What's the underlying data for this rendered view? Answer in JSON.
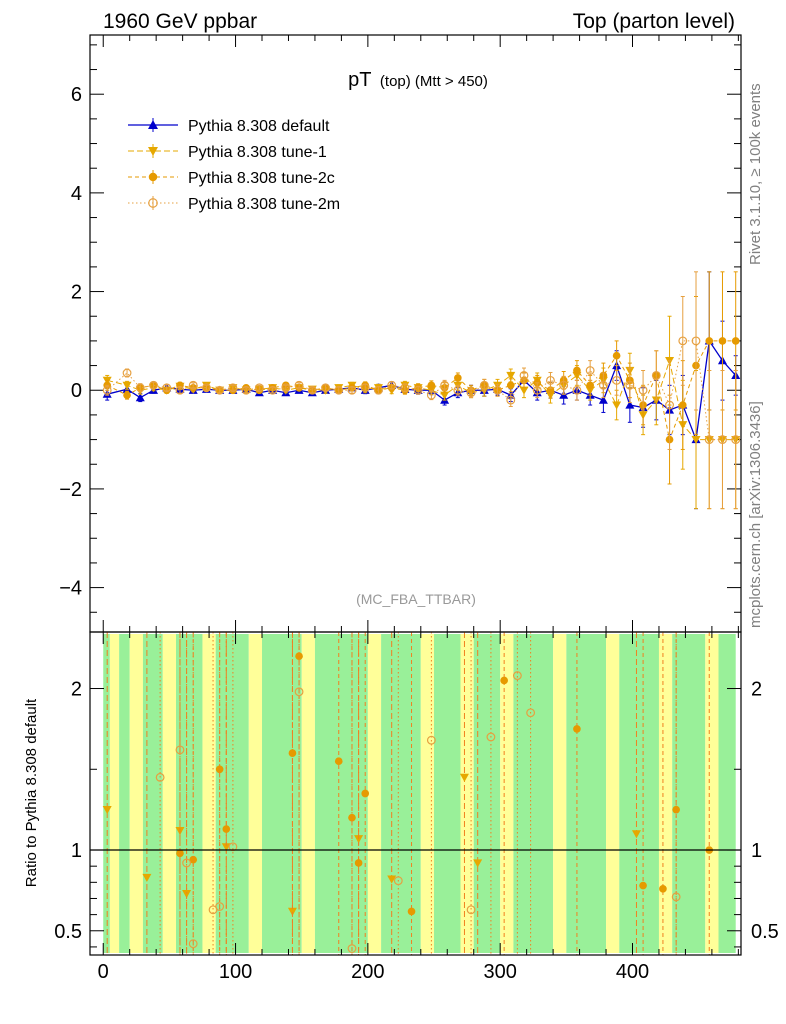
{
  "header": {
    "left": "1960 GeV ppbar",
    "right": "Top (parton level)"
  },
  "side_labels": {
    "top": "Rivet 3.1.10, ≥ 100k events",
    "bottom": "mcplots.cern.ch [arXiv:1306.3436]"
  },
  "colors": {
    "default": "#0000cc",
    "tune1": "#e6a800",
    "tune2c": "#e69a00",
    "tune2m": "#e6a040",
    "ratio_band_green": "#99f099",
    "ratio_band_yellow": "#ffff99",
    "ratio_line": "#f08020"
  },
  "chart_data": [
    {
      "type": "line",
      "title": "pT (top) (Mtt > 450)",
      "title_main": "pT",
      "title_sub": "(top) (Mtt > 450)",
      "watermark": "(MC_FBA_TTBAR)",
      "xlim": [
        -10,
        482
      ],
      "ylim": [
        -4.9,
        7.2
      ],
      "yticks": [
        -4,
        -2,
        0,
        2,
        4,
        6
      ],
      "ytick_labels": [
        "−4",
        "−2",
        "0",
        "2",
        "4",
        "6"
      ],
      "legend_position": "top-left",
      "series": [
        {
          "name": "Pythia 8.308 default",
          "marker": "triangle-up",
          "x": [
            3,
            18,
            28,
            38,
            48,
            58,
            68,
            78,
            88,
            98,
            108,
            118,
            128,
            138,
            148,
            158,
            168,
            178,
            188,
            198,
            208,
            218,
            228,
            238,
            248,
            258,
            268,
            278,
            288,
            298,
            308,
            318,
            328,
            338,
            348,
            358,
            368,
            378,
            388,
            398,
            408,
            418,
            428,
            438,
            448,
            458,
            468,
            478
          ],
          "y": [
            -0.08,
            0.02,
            -0.15,
            0.0,
            0.05,
            0.02,
            0.0,
            0.02,
            0.0,
            0.0,
            0.02,
            -0.05,
            0.0,
            -0.05,
            0.0,
            -0.05,
            0.0,
            0.02,
            0.05,
            0.0,
            0.05,
            0.1,
            0.02,
            0.0,
            0.0,
            -0.2,
            -0.05,
            0.0,
            0.0,
            0.02,
            -0.1,
            0.2,
            -0.05,
            0.0,
            -0.1,
            0.0,
            -0.1,
            -0.2,
            0.5,
            -0.3,
            -0.35,
            -0.2,
            -0.4,
            -0.3,
            -1.0,
            1.0,
            0.6,
            0.3
          ],
          "err": [
            0.12,
            0.08,
            0.08,
            0.06,
            0.06,
            0.06,
            0.05,
            0.05,
            0.05,
            0.05,
            0.05,
            0.05,
            0.05,
            0.05,
            0.05,
            0.05,
            0.06,
            0.06,
            0.06,
            0.07,
            0.07,
            0.07,
            0.08,
            0.08,
            0.09,
            0.1,
            0.1,
            0.1,
            0.12,
            0.12,
            0.13,
            0.15,
            0.15,
            0.16,
            0.18,
            0.2,
            0.2,
            0.25,
            0.3,
            0.35,
            0.4,
            0.4,
            0.5,
            0.6,
            1.4,
            1.4,
            0.8,
            0.4
          ]
        },
        {
          "name": "Pythia 8.308 tune-1",
          "marker": "triangle-down",
          "x": [
            3,
            18,
            28,
            38,
            48,
            58,
            68,
            78,
            88,
            98,
            108,
            118,
            128,
            138,
            148,
            158,
            168,
            178,
            188,
            198,
            208,
            218,
            228,
            238,
            248,
            258,
            268,
            278,
            288,
            298,
            308,
            318,
            328,
            338,
            348,
            358,
            368,
            378,
            388,
            398,
            408,
            418,
            428,
            438,
            448,
            458,
            468,
            478
          ],
          "y": [
            0.2,
            0.1,
            0.0,
            0.05,
            0.0,
            0.08,
            0.02,
            0.1,
            0.0,
            0.05,
            0.0,
            0.02,
            0.05,
            0.0,
            0.05,
            0.02,
            0.0,
            0.05,
            0.1,
            0.02,
            0.05,
            0.0,
            0.1,
            0.05,
            0.0,
            -0.1,
            0.1,
            -0.05,
            0.0,
            0.1,
            0.3,
            0.0,
            0.2,
            -0.1,
            0.1,
            0.3,
            0.0,
            0.2,
            -0.3,
            0.4,
            -0.5,
            -0.2,
            0.6,
            -0.7,
            -1.0,
            -1.0,
            -1.0,
            -1.0
          ],
          "err": [
            0.1,
            0.08,
            0.08,
            0.06,
            0.06,
            0.06,
            0.05,
            0.05,
            0.05,
            0.05,
            0.05,
            0.05,
            0.05,
            0.05,
            0.05,
            0.05,
            0.06,
            0.06,
            0.06,
            0.07,
            0.07,
            0.07,
            0.08,
            0.08,
            0.09,
            0.1,
            0.1,
            0.1,
            0.12,
            0.12,
            0.13,
            0.15,
            0.15,
            0.16,
            0.18,
            0.2,
            0.2,
            0.25,
            0.3,
            0.35,
            0.4,
            0.5,
            0.9,
            0.9,
            1.4,
            1.4,
            1.4,
            1.4
          ]
        },
        {
          "name": "Pythia 8.308 tune-2c",
          "marker": "circle",
          "x": [
            3,
            18,
            28,
            38,
            48,
            58,
            68,
            78,
            88,
            98,
            108,
            118,
            128,
            138,
            148,
            158,
            168,
            178,
            188,
            198,
            208,
            218,
            228,
            238,
            248,
            258,
            268,
            278,
            288,
            298,
            308,
            318,
            328,
            338,
            348,
            358,
            368,
            378,
            388,
            398,
            408,
            418,
            428,
            438,
            448,
            458,
            468,
            478
          ],
          "y": [
            0.1,
            -0.1,
            0.05,
            0.1,
            0.0,
            0.1,
            0.05,
            0.05,
            0.0,
            0.0,
            0.05,
            0.0,
            0.05,
            0.1,
            0.05,
            0.0,
            0.05,
            0.0,
            0.05,
            0.1,
            0.0,
            0.05,
            0.0,
            0.05,
            0.1,
            0.05,
            0.25,
            0.0,
            0.1,
            0.0,
            0.1,
            0.2,
            0.15,
            0.0,
            0.2,
            0.4,
            0.1,
            0.3,
            0.7,
            0.2,
            -0.3,
            0.3,
            -1.0,
            -0.3,
            0.5,
            1.0,
            1.0,
            1.0
          ],
          "err": [
            0.1,
            0.08,
            0.08,
            0.06,
            0.06,
            0.06,
            0.05,
            0.05,
            0.05,
            0.05,
            0.05,
            0.05,
            0.05,
            0.05,
            0.05,
            0.05,
            0.06,
            0.06,
            0.06,
            0.07,
            0.07,
            0.07,
            0.08,
            0.08,
            0.09,
            0.1,
            0.1,
            0.1,
            0.12,
            0.12,
            0.13,
            0.15,
            0.15,
            0.16,
            0.18,
            0.2,
            0.2,
            0.25,
            0.3,
            0.35,
            0.4,
            0.5,
            0.9,
            0.9,
            1.4,
            1.4,
            1.4,
            1.4
          ]
        },
        {
          "name": "Pythia 8.308 tune-2m",
          "marker": "circle-open",
          "x": [
            3,
            18,
            28,
            38,
            48,
            58,
            68,
            78,
            88,
            98,
            108,
            118,
            128,
            138,
            148,
            158,
            168,
            178,
            188,
            198,
            208,
            218,
            228,
            238,
            248,
            258,
            268,
            278,
            288,
            298,
            308,
            318,
            328,
            338,
            348,
            358,
            368,
            378,
            388,
            398,
            408,
            418,
            428,
            438,
            448,
            458,
            468,
            478
          ],
          "y": [
            0.0,
            0.35,
            0.05,
            0.1,
            0.05,
            0.0,
            0.1,
            0.05,
            0.0,
            0.05,
            0.0,
            0.05,
            0.0,
            0.05,
            0.1,
            0.0,
            0.05,
            0.0,
            0.0,
            0.05,
            0.0,
            0.1,
            0.05,
            0.0,
            -0.1,
            0.1,
            0.0,
            -0.05,
            0.1,
            0.0,
            -0.2,
            0.3,
            0.0,
            0.2,
            0.1,
            0.0,
            0.4,
            0.1,
            0.2,
            0.1,
            0.0,
            0.3,
            -0.3,
            1.0,
            1.0,
            -1.0,
            -1.0,
            -1.0
          ],
          "err": [
            0.1,
            0.08,
            0.08,
            0.06,
            0.06,
            0.06,
            0.05,
            0.05,
            0.05,
            0.05,
            0.05,
            0.05,
            0.05,
            0.05,
            0.05,
            0.05,
            0.06,
            0.06,
            0.06,
            0.07,
            0.07,
            0.07,
            0.08,
            0.08,
            0.09,
            0.1,
            0.1,
            0.1,
            0.12,
            0.12,
            0.13,
            0.15,
            0.15,
            0.16,
            0.18,
            0.2,
            0.2,
            0.25,
            0.3,
            0.35,
            0.4,
            0.5,
            0.9,
            0.9,
            1.4,
            1.4,
            1.4,
            1.4
          ]
        }
      ]
    },
    {
      "type": "line",
      "ylabel": "Ratio to Pythia 8.308 default",
      "xlim": [
        -10,
        482
      ],
      "ylim": [
        0.35,
        2.35
      ],
      "yticks": [
        0.5,
        1,
        2
      ],
      "ytick_labels": [
        "0.5",
        "1",
        "2"
      ],
      "xticks": [
        0,
        100,
        200,
        300,
        400
      ],
      "xtick_labels": [
        "0",
        "100",
        "200",
        "300",
        "400"
      ],
      "reference_line": 1,
      "bands": [
        {
          "x0": 0,
          "x1": 5,
          "color": "green"
        },
        {
          "x0": 5,
          "x1": 12,
          "color": "yellow"
        },
        {
          "x0": 12,
          "x1": 20,
          "color": "green"
        },
        {
          "x0": 20,
          "x1": 30,
          "color": "yellow"
        },
        {
          "x0": 30,
          "x1": 45,
          "color": "green"
        },
        {
          "x0": 45,
          "x1": 55,
          "color": "yellow"
        },
        {
          "x0": 55,
          "x1": 75,
          "color": "green"
        },
        {
          "x0": 75,
          "x1": 85,
          "color": "yellow"
        },
        {
          "x0": 85,
          "x1": 110,
          "color": "green"
        },
        {
          "x0": 110,
          "x1": 120,
          "color": "yellow"
        },
        {
          "x0": 120,
          "x1": 150,
          "color": "green"
        },
        {
          "x0": 150,
          "x1": 160,
          "color": "yellow"
        },
        {
          "x0": 160,
          "x1": 200,
          "color": "green"
        },
        {
          "x0": 200,
          "x1": 210,
          "color": "yellow"
        },
        {
          "x0": 210,
          "x1": 240,
          "color": "green"
        },
        {
          "x0": 240,
          "x1": 250,
          "color": "yellow"
        },
        {
          "x0": 250,
          "x1": 270,
          "color": "green"
        },
        {
          "x0": 270,
          "x1": 280,
          "color": "yellow"
        },
        {
          "x0": 280,
          "x1": 300,
          "color": "green"
        },
        {
          "x0": 300,
          "x1": 310,
          "color": "yellow"
        },
        {
          "x0": 310,
          "x1": 340,
          "color": "green"
        },
        {
          "x0": 340,
          "x1": 350,
          "color": "yellow"
        },
        {
          "x0": 350,
          "x1": 380,
          "color": "green"
        },
        {
          "x0": 380,
          "x1": 390,
          "color": "yellow"
        },
        {
          "x0": 390,
          "x1": 420,
          "color": "green"
        },
        {
          "x0": 420,
          "x1": 430,
          "color": "yellow"
        },
        {
          "x0": 430,
          "x1": 455,
          "color": "green"
        },
        {
          "x0": 455,
          "x1": 465,
          "color": "yellow"
        },
        {
          "x0": 465,
          "x1": 478,
          "color": "green"
        }
      ],
      "series": [
        {
          "name": "Pythia 8.308 tune-1",
          "marker": "triangle-down",
          "x": [
            3,
            33,
            58,
            63,
            93,
            143,
            193,
            218,
            273,
            283,
            403
          ],
          "y": [
            1.25,
            0.83,
            1.12,
            0.73,
            1.02,
            0.62,
            1.07,
            0.82,
            1.45,
            0.92,
            1.1
          ]
        },
        {
          "name": "Pythia 8.308 tune-2c",
          "marker": "circle",
          "x": [
            58,
            68,
            88,
            93,
            143,
            148,
            178,
            188,
            193,
            198,
            233,
            303,
            358,
            408,
            423,
            433,
            458
          ],
          "y": [
            0.98,
            0.94,
            1.5,
            1.13,
            1.6,
            2.2,
            1.55,
            1.2,
            0.92,
            1.35,
            0.62,
            2.05,
            1.75,
            0.78,
            0.76,
            1.25,
            1.0
          ]
        },
        {
          "name": "Pythia 8.308 tune-2m",
          "marker": "circle-open",
          "x": [
            43,
            58,
            63,
            68,
            83,
            88,
            98,
            148,
            188,
            223,
            248,
            278,
            293,
            313,
            323,
            433
          ],
          "y": [
            1.45,
            1.62,
            0.92,
            0.42,
            0.63,
            0.65,
            1.02,
            1.98,
            0.39,
            0.81,
            1.68,
            0.63,
            1.7,
            2.08,
            1.85,
            0.71
          ]
        }
      ]
    }
  ]
}
